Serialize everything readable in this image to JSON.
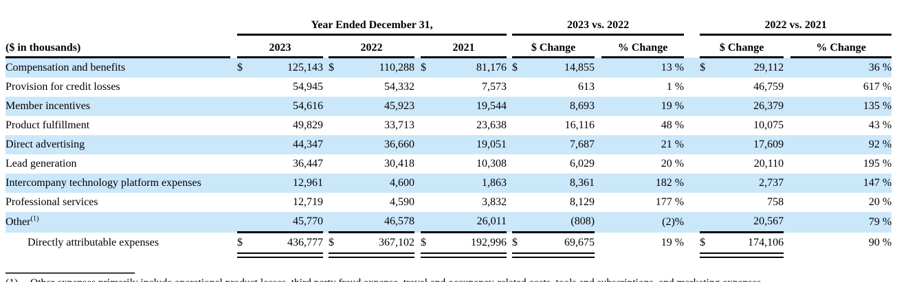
{
  "currency_symbol": "$",
  "title_groups": {
    "years": "Year Ended December 31,",
    "chg1": "2023 vs. 2022",
    "chg2": "2022 vs. 2021"
  },
  "header": {
    "units": "($ in thousands)",
    "y2023": "2023",
    "y2022": "2022",
    "y2021": "2021",
    "dollar_change": "$ Change",
    "percent_change": "% Change"
  },
  "rows": [
    {
      "label": "Compensation and benefits",
      "sup": "",
      "show_dollar": true,
      "shaded": true,
      "v2023": "125,143",
      "v2022": "110,288",
      "v2021": "81,176",
      "chg1_d": "14,855",
      "chg1_p": "13 %",
      "chg2_d": "29,112",
      "chg2_p": "36 %"
    },
    {
      "label": "Provision for credit losses",
      "sup": "",
      "show_dollar": false,
      "shaded": false,
      "v2023": "54,945",
      "v2022": "54,332",
      "v2021": "7,573",
      "chg1_d": "613",
      "chg1_p": "1 %",
      "chg2_d": "46,759",
      "chg2_p": "617 %"
    },
    {
      "label": "Member incentives",
      "sup": "",
      "show_dollar": false,
      "shaded": true,
      "v2023": "54,616",
      "v2022": "45,923",
      "v2021": "19,544",
      "chg1_d": "8,693",
      "chg1_p": "19 %",
      "chg2_d": "26,379",
      "chg2_p": "135 %"
    },
    {
      "label": "Product fulfillment",
      "sup": "",
      "show_dollar": false,
      "shaded": false,
      "v2023": "49,829",
      "v2022": "33,713",
      "v2021": "23,638",
      "chg1_d": "16,116",
      "chg1_p": "48 %",
      "chg2_d": "10,075",
      "chg2_p": "43 %"
    },
    {
      "label": "Direct advertising",
      "sup": "",
      "show_dollar": false,
      "shaded": true,
      "v2023": "44,347",
      "v2022": "36,660",
      "v2021": "19,051",
      "chg1_d": "7,687",
      "chg1_p": "21 %",
      "chg2_d": "17,609",
      "chg2_p": "92 %"
    },
    {
      "label": "Lead generation",
      "sup": "",
      "show_dollar": false,
      "shaded": false,
      "v2023": "36,447",
      "v2022": "30,418",
      "v2021": "10,308",
      "chg1_d": "6,029",
      "chg1_p": "20 %",
      "chg2_d": "20,110",
      "chg2_p": "195 %"
    },
    {
      "label": "Intercompany technology platform expenses",
      "sup": "",
      "show_dollar": false,
      "shaded": true,
      "v2023": "12,961",
      "v2022": "4,600",
      "v2021": "1,863",
      "chg1_d": "8,361",
      "chg1_p": "182 %",
      "chg2_d": "2,737",
      "chg2_p": "147 %"
    },
    {
      "label": "Professional services",
      "sup": "",
      "show_dollar": false,
      "shaded": false,
      "v2023": "12,719",
      "v2022": "4,590",
      "v2021": "3,832",
      "chg1_d": "8,129",
      "chg1_p": "177 %",
      "chg2_d": "758",
      "chg2_p": "20 %"
    },
    {
      "label": "Other",
      "sup": "(1)",
      "show_dollar": false,
      "shaded": true,
      "v2023": "45,770",
      "v2022": "46,578",
      "v2021": "26,011",
      "chg1_d": "(808)",
      "chg1_p": "(2)%",
      "chg2_d": "20,567",
      "chg2_p": "79 %"
    }
  ],
  "total": {
    "label": "Directly attributable expenses",
    "sup": "",
    "show_dollar": true,
    "shaded": false,
    "v2023": "436,777",
    "v2022": "367,102",
    "v2021": "192,996",
    "chg1_d": "69,675",
    "chg1_p": "19 %",
    "chg2_d": "174,106",
    "chg2_p": "90 %"
  },
  "footnote": {
    "marker": "(1)",
    "text": "Other expenses primarily include operational product losses, third party fraud expense, travel and occupancy-related costs, tools and subscriptions, and marketing expenses."
  }
}
